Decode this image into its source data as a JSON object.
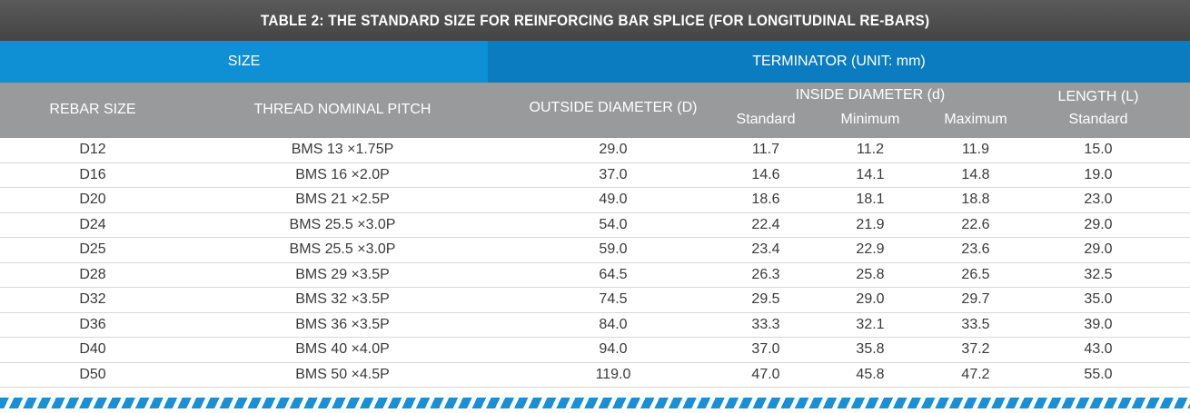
{
  "title": "TABLE 2: THE STANDARD SIZE FOR REINFORCING BAR SPLICE (FOR LONGITUDINAL RE-BARS)",
  "groups": {
    "size": "SIZE",
    "terminator": "TERMINATOR  (UNIT: mm)"
  },
  "headers": {
    "rebar_size": "REBAR SIZE",
    "thread_pitch": "THREAD NOMINAL PITCH",
    "outside_diameter": "OUTSIDE DIAMETER (D)",
    "inside_diameter": "INSIDE DIAMETER (d)",
    "standard": "Standard",
    "minimum": "Minimum",
    "maximum": "Maximum",
    "length": "LENGTH (L)",
    "length_standard": "Standard"
  },
  "rows": [
    [
      "D12",
      "BMS 13 ×1.75P",
      "29.0",
      "11.7",
      "11.2",
      "11.9",
      "15.0"
    ],
    [
      "D16",
      "BMS 16 ×2.0P",
      "37.0",
      "14.6",
      "14.1",
      "14.8",
      "19.0"
    ],
    [
      "D20",
      "BMS 21 ×2.5P",
      "49.0",
      "18.6",
      "18.1",
      "18.8",
      "23.0"
    ],
    [
      "D24",
      "BMS 25.5 ×3.0P",
      "54.0",
      "22.4",
      "21.9",
      "22.6",
      "29.0"
    ],
    [
      "D25",
      "BMS 25.5 ×3.0P",
      "59.0",
      "23.4",
      "22.9",
      "23.6",
      "29.0"
    ],
    [
      "D28",
      "BMS 29 ×3.5P",
      "64.5",
      "26.3",
      "25.8",
      "26.5",
      "32.5"
    ],
    [
      "D32",
      "BMS 32 ×3.5P",
      "74.5",
      "29.5",
      "29.0",
      "29.7",
      "35.0"
    ],
    [
      "D36",
      "BMS 36 ×3.5P",
      "84.0",
      "33.3",
      "32.1",
      "33.5",
      "39.0"
    ],
    [
      "D40",
      "BMS 40 ×4.0P",
      "94.0",
      "37.0",
      "35.8",
      "37.2",
      "43.0"
    ],
    [
      "D50",
      "BMS 50 ×4.5P",
      "119.0",
      "47.0",
      "45.8",
      "47.2",
      "55.0"
    ]
  ],
  "colors": {
    "title_bg": "#4d4d4d",
    "size_bg": "#0f8fd4",
    "terminator_bg": "#0a7cbf",
    "header_bg": "#999a9c",
    "stripe": "#1a8fd6"
  }
}
